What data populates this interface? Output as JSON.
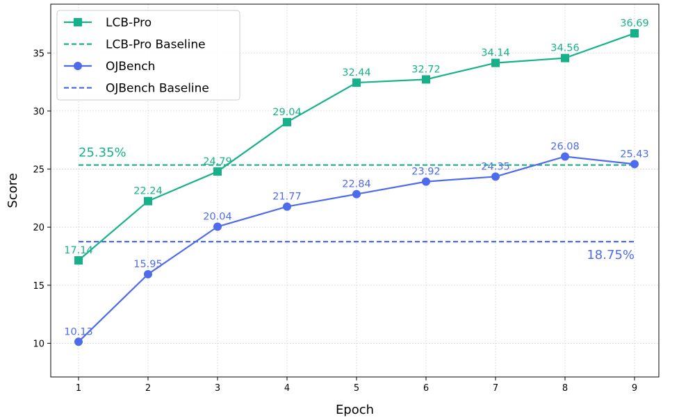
{
  "chart_data": {
    "type": "line",
    "title": "",
    "xlabel": "Epoch",
    "ylabel": "Score",
    "x": [
      1,
      2,
      3,
      4,
      5,
      6,
      7,
      8,
      9
    ],
    "xlim": [
      0.6,
      9.35
    ],
    "ylim": [
      7.1,
      39.2
    ],
    "xticks": [
      1,
      2,
      3,
      4,
      5,
      6,
      7,
      8,
      9
    ],
    "yticks": [
      10,
      15,
      20,
      25,
      30,
      35
    ],
    "grid": true,
    "legend_position": "top-left",
    "series": [
      {
        "name": "LCB-Pro",
        "color": "#17b189",
        "marker": "square",
        "values": [
          17.14,
          22.24,
          24.79,
          29.04,
          32.44,
          32.72,
          34.14,
          34.56,
          36.69
        ],
        "labels": [
          "17.14",
          "22.24",
          "24.79",
          "29.04",
          "32.44",
          "32.72",
          "34.14",
          "34.56",
          "36.69"
        ]
      },
      {
        "name": "OJBench",
        "color": "#4e6bed",
        "marker": "circle",
        "values": [
          10.13,
          15.95,
          20.04,
          21.77,
          22.84,
          23.92,
          24.35,
          26.08,
          25.43
        ],
        "labels": [
          "10.13",
          "15.95",
          "20.04",
          "21.77",
          "22.84",
          "23.92",
          "24.35",
          "26.08",
          "25.43"
        ]
      }
    ],
    "baselines": [
      {
        "name": "LCB-Pro Baseline",
        "color": "#17b189",
        "value": 25.35,
        "label": "25.35%",
        "label_position": "left-above"
      },
      {
        "name": "OJBench Baseline",
        "color": "#4e6bed",
        "value": 18.75,
        "label": "18.75%",
        "label_position": "right-below"
      }
    ]
  }
}
